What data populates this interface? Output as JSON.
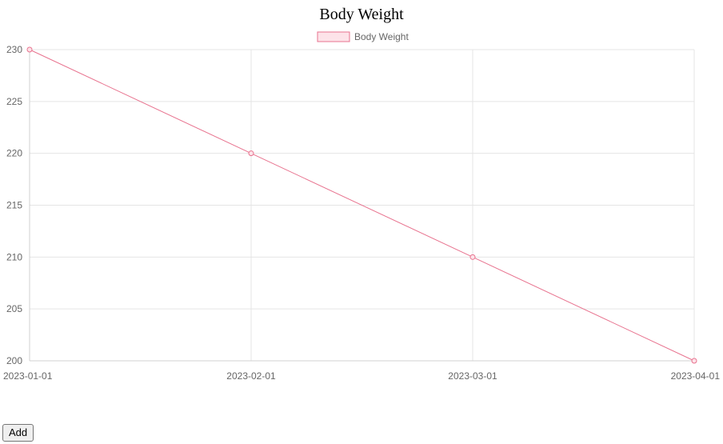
{
  "page": {
    "title": "Body Weight",
    "add_label": "Add"
  },
  "chart_data": {
    "type": "line",
    "title": "Body Weight",
    "x": [
      "2023-01-01",
      "2023-02-01",
      "2023-03-01",
      "2023-04-01"
    ],
    "series": [
      {
        "name": "Body Weight",
        "values": [
          230,
          220,
          210,
          200
        ]
      }
    ],
    "y_ticks": [
      230,
      225,
      220,
      215,
      210,
      205,
      200
    ],
    "ylim": [
      200,
      230
    ],
    "grid": true,
    "legend_position": "top",
    "colors": {
      "line": "#e8738f",
      "legend_fill": "#fde3e9",
      "grid": "#e5e5e5",
      "tick_text": "#666666"
    }
  }
}
